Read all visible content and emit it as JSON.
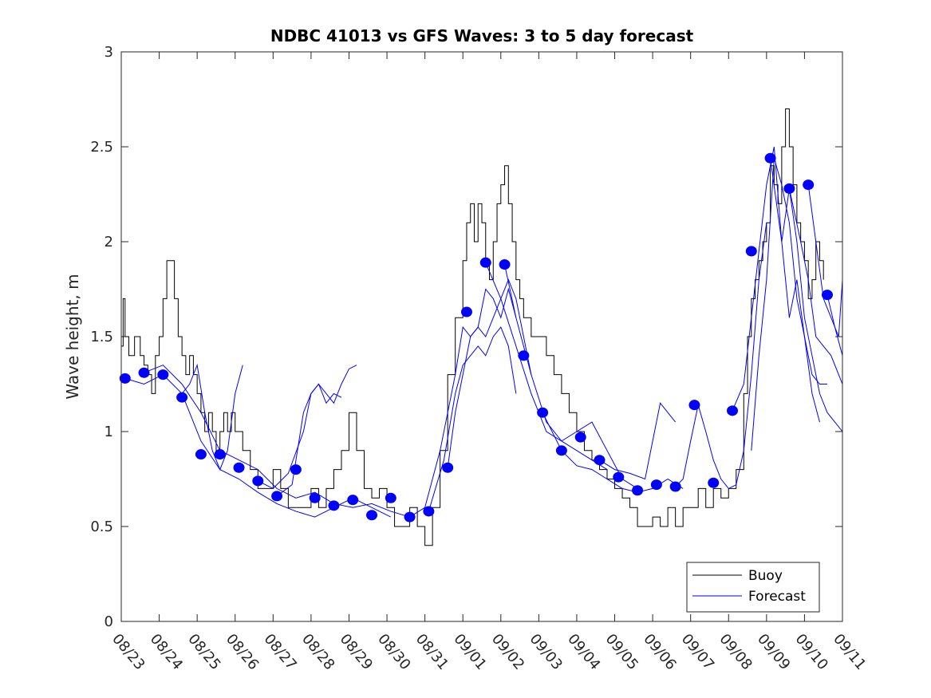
{
  "chart_data": {
    "type": "line",
    "title": "NDBC 41013 vs GFS Waves: 3 to 5 day forecast",
    "xlabel": "",
    "ylabel": "Wave height, m",
    "x_units": "days since 08/23 00:00",
    "xlim": [
      0,
      19
    ],
    "ylim": [
      0,
      3
    ],
    "yticks": [
      0,
      0.5,
      1,
      1.5,
      2,
      2.5,
      3
    ],
    "ytick_labels": [
      "0",
      "0.5",
      "1",
      "1.5",
      "2",
      "2.5",
      "3"
    ],
    "xtick_labels": [
      "08/23",
      "08/24",
      "08/25",
      "08/26",
      "08/27",
      "08/28",
      "08/29",
      "08/30",
      "08/31",
      "09/01",
      "09/02",
      "09/03",
      "09/04",
      "09/05",
      "09/06",
      "09/07",
      "09/08",
      "09/09",
      "09/10",
      "09/11"
    ],
    "grid": false,
    "legend": {
      "position": "bottom-right",
      "entries": [
        {
          "label": "Buoy",
          "color": "#000000"
        },
        {
          "label": "Forecast",
          "color": "#0000ff"
        }
      ]
    },
    "colors": {
      "buoy": "#000000",
      "forecast": "#0000ff",
      "marker": "#0000ff"
    },
    "series": [
      {
        "name": "Buoy",
        "color": "#000000",
        "x": [
          0,
          0.05,
          0.1,
          0.2,
          0.35,
          0.5,
          0.6,
          0.7,
          0.8,
          0.9,
          1.0,
          1.1,
          1.2,
          1.3,
          1.4,
          1.5,
          1.6,
          1.7,
          1.8,
          1.9,
          2.0,
          2.1,
          2.2,
          2.3,
          2.4,
          2.5,
          2.6,
          2.7,
          2.8,
          2.9,
          3.0,
          3.2,
          3.4,
          3.6,
          3.8,
          4.0,
          4.2,
          4.4,
          4.6,
          4.8,
          5.0,
          5.2,
          5.4,
          5.6,
          5.8,
          6.0,
          6.2,
          6.4,
          6.6,
          6.8,
          7.0,
          7.2,
          7.4,
          7.6,
          7.8,
          8.0,
          8.2,
          8.4,
          8.6,
          8.8,
          9.0,
          9.1,
          9.2,
          9.3,
          9.4,
          9.5,
          9.6,
          9.7,
          9.8,
          9.9,
          10.0,
          10.1,
          10.2,
          10.3,
          10.4,
          10.5,
          10.6,
          10.8,
          11.0,
          11.2,
          11.4,
          11.6,
          11.8,
          12.0,
          12.2,
          12.4,
          12.6,
          12.8,
          13.0,
          13.2,
          13.4,
          13.6,
          13.8,
          14.0,
          14.2,
          14.4,
          14.6,
          14.8,
          15.0,
          15.2,
          15.4,
          15.6,
          15.8,
          16.0,
          16.2,
          16.4,
          16.5,
          16.6,
          16.7,
          16.8,
          16.9,
          17.0,
          17.1,
          17.2,
          17.3,
          17.4,
          17.5,
          17.6,
          17.7,
          17.8,
          17.9,
          18.0,
          18.1,
          18.2,
          18.3,
          18.4,
          18.5
        ],
        "y": [
          1.45,
          1.7,
          1.5,
          1.4,
          1.5,
          1.4,
          1.35,
          1.3,
          1.2,
          1.4,
          1.5,
          1.7,
          1.9,
          1.9,
          1.7,
          1.5,
          1.4,
          1.3,
          1.4,
          1.3,
          1.2,
          1.1,
          1.0,
          1.1,
          1.0,
          0.9,
          1.0,
          1.1,
          1.0,
          1.1,
          1.0,
          0.9,
          0.8,
          0.7,
          0.7,
          0.8,
          0.7,
          0.6,
          0.6,
          0.6,
          0.7,
          0.6,
          0.7,
          0.8,
          0.9,
          1.1,
          0.9,
          0.7,
          0.65,
          0.7,
          0.6,
          0.5,
          0.5,
          0.6,
          0.5,
          0.4,
          0.6,
          0.9,
          1.3,
          1.6,
          1.9,
          2.1,
          2.2,
          2.0,
          2.2,
          2.1,
          1.9,
          1.8,
          2.0,
          2.2,
          2.3,
          2.4,
          2.2,
          2.0,
          1.8,
          1.7,
          1.6,
          1.5,
          1.5,
          1.4,
          1.3,
          1.2,
          1.1,
          1.0,
          0.9,
          0.85,
          0.8,
          0.75,
          0.7,
          0.65,
          0.6,
          0.5,
          0.5,
          0.55,
          0.5,
          0.6,
          0.5,
          0.6,
          0.6,
          0.7,
          0.6,
          0.7,
          0.65,
          0.7,
          0.8,
          1.2,
          1.5,
          1.7,
          1.8,
          1.9,
          2.0,
          2.1,
          2.4,
          2.3,
          2.2,
          2.5,
          2.7,
          2.5,
          2.3,
          2.1,
          2.0,
          1.9,
          1.7,
          1.8,
          2.0,
          1.9,
          1.8
        ]
      },
      {
        "name": "Forecast markers",
        "color": "#0000ff",
        "x": [
          0.1,
          0.6,
          1.1,
          1.6,
          2.1,
          2.6,
          3.1,
          3.6,
          4.1,
          4.6,
          5.1,
          5.6,
          6.1,
          6.6,
          7.1,
          7.6,
          8.1,
          8.6,
          9.1,
          9.6,
          10.1,
          10.6,
          11.1,
          11.6,
          12.1,
          12.6,
          13.1,
          13.6,
          14.1,
          14.6,
          15.1,
          15.6,
          16.1,
          16.6,
          17.1,
          17.6,
          18.1,
          18.6
        ],
        "y": [
          1.28,
          1.31,
          1.3,
          1.18,
          0.88,
          0.88,
          0.81,
          0.74,
          0.66,
          0.8,
          0.65,
          0.61,
          0.64,
          0.56,
          0.65,
          0.55,
          0.58,
          0.81,
          1.63,
          1.89,
          1.88,
          1.4,
          1.1,
          0.9,
          0.97,
          0.85,
          0.76,
          0.69,
          0.72,
          0.71,
          1.14,
          0.73,
          1.11,
          1.95,
          2.44,
          2.28,
          2.3,
          1.72
        ]
      },
      {
        "name": "Forecast runs",
        "color": "#0000ff",
        "runs": [
          {
            "x": [
              0.1,
              0.6,
              1.1,
              1.6,
              2.1,
              2.6,
              3.1,
              3.6,
              4.1,
              4.6,
              5.1,
              5.6,
              6.1,
              6.6,
              7.1
            ],
            "y": [
              1.28,
              1.25,
              1.3,
              1.2,
              0.95,
              0.8,
              0.75,
              0.68,
              0.62,
              0.58,
              0.55,
              0.6,
              0.65,
              0.6,
              0.55
            ]
          },
          {
            "x": [
              0.6,
              1.1,
              1.6,
              2.1,
              2.6,
              3.1,
              3.6,
              4.1,
              4.6,
              5.1,
              5.6,
              6.1,
              6.6,
              7.1,
              7.6
            ],
            "y": [
              1.31,
              1.35,
              1.25,
              1.1,
              0.9,
              0.85,
              0.8,
              0.7,
              0.65,
              0.68,
              0.62,
              0.6,
              0.62,
              0.58,
              0.55
            ]
          },
          {
            "x": [
              1.6,
              1.8,
              2.0,
              2.2,
              2.4,
              2.6,
              2.8,
              3.0,
              3.2
            ],
            "y": [
              1.2,
              1.25,
              1.35,
              1.1,
              0.9,
              0.8,
              0.9,
              1.2,
              1.35
            ]
          },
          {
            "x": [
              3.6,
              4.0,
              4.4,
              4.8,
              5.0,
              5.2,
              5.4,
              5.6,
              5.8,
              6.0,
              6.2
            ],
            "y": [
              0.74,
              0.7,
              0.78,
              1.0,
              1.2,
              1.25,
              1.2,
              1.15,
              1.25,
              1.33,
              1.35
            ]
          },
          {
            "x": [
              4.1,
              4.5,
              4.8,
              5.0,
              5.2,
              5.4,
              5.6,
              5.8
            ],
            "y": [
              0.66,
              0.72,
              1.1,
              1.2,
              1.25,
              1.15,
              1.2,
              1.18
            ]
          },
          {
            "x": [
              7.6,
              8.0,
              8.4,
              8.8,
              9.0,
              9.2,
              9.4,
              9.6,
              9.8,
              10.0,
              10.2,
              10.4
            ],
            "y": [
              0.55,
              0.6,
              0.9,
              1.3,
              1.55,
              1.5,
              1.55,
              1.75,
              1.7,
              1.6,
              1.75,
              1.6
            ]
          },
          {
            "x": [
              8.1,
              8.5,
              8.8,
              9.0,
              9.2,
              9.4,
              9.6,
              9.8,
              10.0,
              10.2,
              10.4
            ],
            "y": [
              0.58,
              0.85,
              1.2,
              1.35,
              1.4,
              1.45,
              1.4,
              1.5,
              1.55,
              1.45,
              1.2
            ]
          },
          {
            "x": [
              8.6,
              8.8,
              9.0,
              9.2,
              9.4,
              9.6,
              9.8,
              10.0,
              10.2,
              10.4,
              10.6,
              10.8
            ],
            "y": [
              0.81,
              1.1,
              1.3,
              1.5,
              1.55,
              1.5,
              1.6,
              1.7,
              1.8,
              1.7,
              1.5,
              1.3
            ]
          },
          {
            "x": [
              9.6,
              10.0,
              10.4,
              10.8,
              11.2,
              11.6,
              12.0,
              12.4,
              12.8
            ],
            "y": [
              1.89,
              1.7,
              1.45,
              1.2,
              1.0,
              0.95,
              0.9,
              0.85,
              0.8
            ]
          },
          {
            "x": [
              10.1,
              10.4,
              10.8,
              11.2,
              11.6,
              12.0,
              12.4,
              12.8,
              13.2,
              13.6
            ],
            "y": [
              1.88,
              1.6,
              1.3,
              1.05,
              0.95,
              1.0,
              1.05,
              0.9,
              0.75,
              0.7
            ]
          },
          {
            "x": [
              11.1,
              11.6,
              12.0,
              12.4,
              12.8,
              13.2,
              13.6,
              14.0,
              14.4,
              14.8
            ],
            "y": [
              1.1,
              0.9,
              0.82,
              0.8,
              0.75,
              0.7,
              0.68,
              0.7,
              0.75,
              0.7
            ]
          },
          {
            "x": [
              12.6,
              13.0,
              13.4,
              13.8,
              14.0,
              14.2,
              14.4,
              14.6
            ],
            "y": [
              0.85,
              0.8,
              0.78,
              0.75,
              0.95,
              1.15,
              1.1,
              1.05
            ]
          },
          {
            "x": [
              14.6,
              14.8,
              15.0,
              15.2,
              15.4,
              15.6,
              15.8,
              16.0,
              16.2,
              16.4,
              16.6,
              16.8,
              17.0
            ],
            "y": [
              0.71,
              0.75,
              0.95,
              1.14,
              1.0,
              0.85,
              0.75,
              0.7,
              0.72,
              0.9,
              1.3,
              1.8,
              2.1
            ]
          },
          {
            "x": [
              16.1,
              16.4,
              16.6,
              16.8,
              17.0,
              17.2,
              17.4,
              17.6,
              17.8,
              18.0,
              18.2,
              18.4,
              18.6
            ],
            "y": [
              1.11,
              1.25,
              1.6,
              1.95,
              2.3,
              2.5,
              2.0,
              1.6,
              1.8,
              1.5,
              1.3,
              1.25,
              1.25
            ]
          },
          {
            "x": [
              16.6,
              16.8,
              17.0,
              17.2,
              17.4,
              17.6,
              17.8,
              18.0,
              18.2,
              18.4
            ],
            "y": [
              0.9,
              1.4,
              1.8,
              2.44,
              2.3,
              2.1,
              1.7,
              1.5,
              1.2,
              1.05
            ]
          },
          {
            "x": [
              17.1,
              17.4,
              17.6,
              17.8,
              18.0,
              18.2,
              18.4,
              18.6,
              18.8,
              19.0
            ],
            "y": [
              2.44,
              2.0,
              2.28,
              2.0,
              1.6,
              1.4,
              1.2,
              1.1,
              1.05,
              1.0
            ]
          },
          {
            "x": [
              17.6,
              17.9,
              18.1,
              18.3,
              18.5,
              18.7,
              18.9,
              19.0
            ],
            "y": [
              2.28,
              2.0,
              1.8,
              1.5,
              1.45,
              1.4,
              1.3,
              1.25
            ]
          },
          {
            "x": [
              18.1,
              18.3,
              18.5,
              18.7,
              18.9,
              19.0
            ],
            "y": [
              2.3,
              2.0,
              1.7,
              1.6,
              1.5,
              1.8
            ]
          },
          {
            "x": [
              18.6,
              18.8,
              19.0
            ],
            "y": [
              1.72,
              1.55,
              1.4
            ]
          }
        ]
      }
    ]
  }
}
